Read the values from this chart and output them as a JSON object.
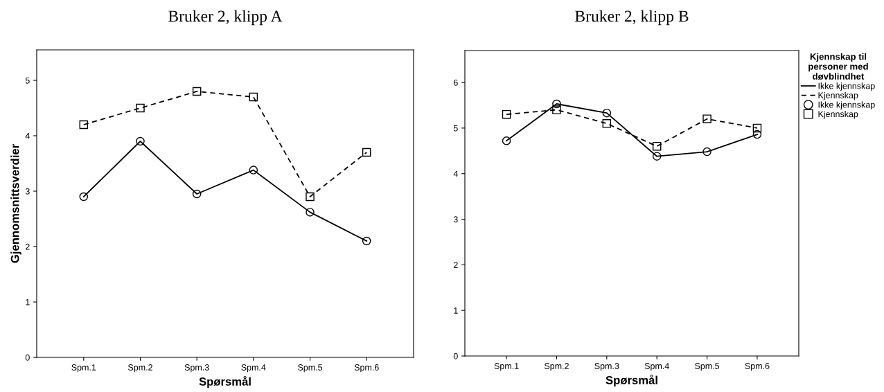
{
  "chart_data": [
    {
      "type": "line",
      "title": "Bruker 2, klipp A",
      "xlabel": "Spørsmål",
      "ylabel": "Gjennomsnittsverdier",
      "categories": [
        "Spm.1",
        "Spm.2",
        "Spm.3",
        "Spm.4",
        "Spm.5",
        "Spm.6"
      ],
      "ylim": [
        0,
        5.55
      ],
      "yticks": [
        0,
        1,
        2,
        3,
        4,
        5
      ],
      "grid": false,
      "series": [
        {
          "color": "#000000",
          "marker": "circle",
          "line_style": "solid",
          "values": [
            2.9,
            3.9,
            2.95,
            3.38,
            2.62,
            2.1
          ]
        },
        {
          "color": "#000000",
          "marker": "square",
          "line_style": "dashed",
          "values": [
            4.2,
            4.5,
            4.8,
            4.7,
            2.9,
            3.7
          ]
        }
      ]
    },
    {
      "type": "line",
      "title": "Bruker 2, klipp B",
      "xlabel": "Spørsmål",
      "legend_title": "Kjennskap til\npersoner med\ndøvblindhet",
      "categories": [
        "Spm.1",
        "Spm.2",
        "Spm.3",
        "Spm.4",
        "Spm.5",
        "Spm.6"
      ],
      "ylim": [
        0,
        6.7
      ],
      "yticks": [
        0,
        1,
        2,
        3,
        4,
        5,
        6
      ],
      "grid": false,
      "legend": "right",
      "series": [
        {
          "name": "Ikke kjennskap",
          "color": "#000000",
          "marker": "circle",
          "line_style": "solid",
          "values": [
            4.72,
            5.53,
            5.33,
            4.38,
            4.48,
            4.86
          ]
        },
        {
          "name": "Kjennskap",
          "color": "#000000",
          "marker": "square",
          "line_style": "dashed",
          "values": [
            5.3,
            5.4,
            5.1,
            4.6,
            5.2,
            5.0
          ]
        }
      ]
    }
  ]
}
